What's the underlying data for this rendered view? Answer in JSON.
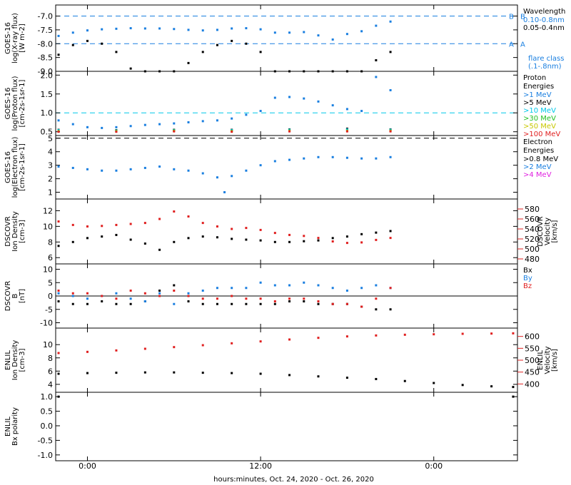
{
  "x_axis": {
    "label": "hours:minutes, Oct. 24, 2020 - Oct. 26, 2020",
    "ticks": [
      {
        "h": 0,
        "label": "0:00"
      },
      {
        "h": 12,
        "label": "12:00"
      },
      {
        "h": 24,
        "label": "0:00"
      }
    ]
  },
  "colors": {
    "black": "#000000",
    "blue": "#1a7fe0",
    "cyan": "#00c8e8",
    "green": "#22c022",
    "yellow": "#c8c800",
    "orange": "#f08020",
    "red": "#e02020",
    "magenta": "#e020e0"
  },
  "chart_data": [
    {
      "id": "xray",
      "type": "scatter",
      "hrange": [
        -2.2,
        29.8
      ],
      "ylim": [
        -9.0,
        -6.6
      ],
      "ylabel_lines": [
        "GOES-16",
        "log(X-ray flux)",
        "[W m-2]"
      ],
      "yticks": [
        -9.0,
        -8.5,
        -8.0,
        -7.5,
        -7.0
      ],
      "ytick_labels": [
        "-9.0",
        "-8.5",
        "-8.0",
        "-7.5",
        "-7.0"
      ],
      "hlines": [
        {
          "y": -7.0,
          "color": "#1a7fe0",
          "dash": true,
          "label": "B"
        },
        {
          "y": -8.0,
          "color": "#1a7fe0",
          "dash": true,
          "label": "A"
        }
      ],
      "legend_title": [
        "Wavelength"
      ],
      "legend": [
        {
          "name": "0.10-0.8nm",
          "color": "#1a7fe0"
        },
        {
          "name": "0.05-0.4nm",
          "color": "#000000"
        }
      ],
      "extra_label": [
        "flare class",
        "(.1-.8nm)"
      ],
      "series": [
        {
          "name": "0.10-0.8nm",
          "color": "#1a7fe0",
          "x": [
            -2,
            -1,
            0,
            1,
            2,
            3,
            4,
            5,
            6,
            7,
            8,
            9,
            10,
            11,
            12,
            13,
            14,
            15,
            16,
            17,
            18,
            19,
            20,
            21
          ],
          "y": [
            -7.72,
            -7.6,
            -7.52,
            -7.48,
            -7.46,
            -7.44,
            -7.45,
            -7.45,
            -7.47,
            -7.5,
            -7.52,
            -7.5,
            -7.45,
            -7.44,
            -7.48,
            -7.6,
            -7.6,
            -7.58,
            -7.7,
            -7.85,
            -7.65,
            -7.55,
            -7.35,
            -7.2
          ]
        },
        {
          "name": "0.05-0.4nm",
          "color": "#000000",
          "x": [
            -2,
            -1,
            0,
            1,
            2,
            3,
            4,
            5,
            6,
            7,
            8,
            9,
            10,
            11,
            12,
            13,
            14,
            15,
            16,
            17,
            18,
            19,
            20,
            21
          ],
          "y": [
            -8.4,
            -8.05,
            -7.9,
            -8.0,
            -8.3,
            -8.9,
            -9.0,
            -9.0,
            -9.0,
            -8.7,
            -8.3,
            -8.05,
            -7.9,
            -8.0,
            -8.3,
            -9.0,
            -9.0,
            -9.0,
            -9.0,
            -9.0,
            -9.0,
            -9.0,
            -8.6,
            -8.3
          ]
        }
      ]
    },
    {
      "id": "proton",
      "type": "scatter",
      "hrange": [
        -2.2,
        29.8
      ],
      "ylim": [
        0.4,
        2.1
      ],
      "ylabel_lines": [
        "GOES-16",
        "log(Proton flux)",
        "[cm-2s-1sr-1]"
      ],
      "yticks": [
        0.5,
        1.0,
        1.5,
        2.0
      ],
      "ytick_labels": [
        "0.5",
        "1.0",
        "1.5",
        "2.0"
      ],
      "hlines": [
        {
          "y": 1.0,
          "color": "#00c8e8",
          "dash": true,
          "label": ""
        }
      ],
      "legend_title": [
        "Proton",
        "Energies"
      ],
      "legend": [
        {
          "name": ">1 MeV",
          "color": "#1a7fe0"
        },
        {
          "name": ">5 MeV",
          "color": "#000000"
        },
        {
          "name": ">10 MeV",
          "color": "#00c8e8"
        },
        {
          "name": ">30 MeV",
          "color": "#22c022"
        },
        {
          "name": ">50 MeV",
          "color": "#c8c800"
        },
        {
          "name": ">100 MeV",
          "color": "#e02020"
        }
      ],
      "series": [
        {
          "name": ">1 MeV",
          "color": "#1a7fe0",
          "x": [
            -2,
            -1,
            0,
            1,
            2,
            3,
            4,
            5,
            6,
            7,
            8,
            9,
            10,
            11,
            12,
            13,
            14,
            15,
            16,
            17,
            18,
            19,
            20,
            21
          ],
          "y": [
            0.8,
            0.7,
            0.62,
            0.6,
            0.62,
            0.65,
            0.68,
            0.7,
            0.72,
            0.75,
            0.78,
            0.8,
            0.85,
            0.95,
            1.05,
            1.4,
            1.42,
            1.38,
            1.3,
            1.2,
            1.1,
            1.05,
            1.95,
            1.6
          ]
        },
        {
          "name": ">5 MeV",
          "color": "#000000",
          "x": [
            -2,
            2,
            6,
            10,
            14,
            18,
            21
          ],
          "y": [
            0.55,
            0.54,
            0.55,
            0.55,
            0.56,
            0.58,
            0.56
          ]
        },
        {
          "name": ">10 MeV",
          "color": "#00c8e8",
          "x": [
            -2,
            2,
            6,
            10,
            14,
            18,
            21
          ],
          "y": [
            0.54,
            0.53,
            0.54,
            0.54,
            0.55,
            0.56,
            0.55
          ]
        },
        {
          "name": ">30 MeV",
          "color": "#22c022",
          "x": [
            -2,
            2,
            6,
            10,
            14,
            18,
            21
          ],
          "y": [
            0.52,
            0.52,
            0.53,
            0.52,
            0.53,
            0.53,
            0.53
          ]
        },
        {
          "name": ">50 MeV",
          "color": "#c8c800",
          "x": [
            -2,
            2,
            6,
            10,
            14,
            18,
            21
          ],
          "y": [
            0.51,
            0.51,
            0.52,
            0.51,
            0.52,
            0.52,
            0.52
          ]
        },
        {
          "name": ">100 MeV",
          "color": "#e02020",
          "x": [
            -2,
            2,
            6,
            10,
            14,
            18,
            21
          ],
          "y": [
            0.5,
            0.5,
            0.51,
            0.5,
            0.51,
            0.51,
            0.51
          ]
        }
      ]
    },
    {
      "id": "electron",
      "type": "scatter",
      "hrange": [
        -2.2,
        29.8
      ],
      "ylim": [
        0.5,
        5.2
      ],
      "ylabel_lines": [
        "GOES-16",
        "log(Electron flux)",
        "[cm-2s-1sr-1]"
      ],
      "yticks": [
        1,
        2,
        3,
        4,
        5
      ],
      "ytick_labels": [
        "1",
        "2",
        "3",
        "4",
        "5"
      ],
      "hlines": [
        {
          "y": 5.0,
          "color": "#000000",
          "dash": true,
          "label": ""
        }
      ],
      "legend_title": [
        "Electron",
        "Energies"
      ],
      "legend": [
        {
          "name": ">0.8 MeV",
          "color": "#000000"
        },
        {
          "name": ">2 MeV",
          "color": "#1a7fe0"
        },
        {
          "name": ">4 MeV",
          "color": "#e020e0"
        }
      ],
      "series": [
        {
          "name": ">2 MeV",
          "color": "#1a7fe0",
          "x": [
            -2,
            -1,
            0,
            1,
            2,
            3,
            4,
            5,
            6,
            7,
            8,
            9,
            9.5,
            10,
            11,
            12,
            13,
            14,
            15,
            16,
            17,
            18,
            19,
            20,
            21
          ],
          "y": [
            2.9,
            2.8,
            2.7,
            2.6,
            2.6,
            2.7,
            2.8,
            2.9,
            2.7,
            2.6,
            2.4,
            2.1,
            1.0,
            2.2,
            2.6,
            3.0,
            3.3,
            3.4,
            3.5,
            3.6,
            3.6,
            3.55,
            3.5,
            3.5,
            3.6
          ]
        }
      ]
    },
    {
      "id": "dscovr_plasma",
      "type": "scatter",
      "hrange": [
        -2.2,
        29.8
      ],
      "ylim": [
        5.2,
        13.5
      ],
      "ylabel_lines": [
        "DSCOVR",
        "Ion Density",
        "[cm-3]"
      ],
      "yticks": [
        6,
        8,
        10,
        12
      ],
      "ytick_labels": [
        "6",
        "8",
        "10",
        "12"
      ],
      "right_axis": {
        "ylim": [
          470,
          600
        ],
        "ticks": [
          480,
          500,
          520,
          540,
          560,
          580
        ],
        "labels": [
          "480",
          "500",
          "520",
          "540",
          "560",
          "580"
        ],
        "color": "#e02020",
        "ylabel_lines": [
          "DSCOVR",
          "Velocity",
          "[km/s]"
        ]
      },
      "series": [
        {
          "name": "density",
          "color": "#000000",
          "axis": "left",
          "x": [
            -2,
            -1,
            0,
            1,
            2,
            3,
            4,
            5,
            6,
            7,
            8,
            9,
            10,
            11,
            12,
            13,
            14,
            15,
            16,
            17,
            18,
            19,
            20,
            21
          ],
          "y": [
            7.5,
            8.0,
            8.5,
            8.7,
            8.9,
            8.3,
            7.8,
            7.0,
            8.0,
            8.5,
            8.7,
            8.6,
            8.4,
            8.3,
            8.2,
            8.0,
            8.0,
            8.1,
            8.2,
            8.5,
            8.7,
            9.0,
            9.2,
            9.4
          ]
        },
        {
          "name": "velocity",
          "color": "#e02020",
          "axis": "right",
          "x": [
            -2,
            -1,
            0,
            1,
            2,
            3,
            4,
            5,
            6,
            7,
            8,
            9,
            10,
            11,
            12,
            13,
            14,
            15,
            16,
            17,
            18,
            19,
            20,
            21
          ],
          "y": [
            555,
            548,
            545,
            546,
            548,
            550,
            552,
            560,
            575,
            565,
            552,
            545,
            540,
            542,
            538,
            532,
            528,
            526,
            522,
            515,
            512,
            513,
            518,
            522
          ]
        }
      ]
    },
    {
      "id": "dscovr_mag",
      "type": "scatter",
      "hrange": [
        -2.2,
        29.8
      ],
      "ylim": [
        -12,
        12
      ],
      "ylabel_lines": [
        "DSCOVR",
        "B",
        "[nT]"
      ],
      "yticks": [
        -10,
        -5,
        0,
        5,
        10
      ],
      "ytick_labels": [
        "-10",
        "-5",
        "0",
        "5",
        "10"
      ],
      "hlines": [
        {
          "y": 0,
          "color": "#000000",
          "dash": false,
          "label": ""
        }
      ],
      "legend": [
        {
          "name": "Bx",
          "color": "#000000"
        },
        {
          "name": "By",
          "color": "#1a7fe0"
        },
        {
          "name": "Bz",
          "color": "#e02020"
        }
      ],
      "series": [
        {
          "name": "Bx",
          "color": "#000000",
          "x": [
            -2,
            -1,
            0,
            1,
            2,
            3,
            4,
            5,
            6,
            7,
            8,
            9,
            10,
            11,
            12,
            13,
            14,
            15,
            16,
            17,
            18,
            19,
            20,
            21
          ],
          "y": [
            -2,
            -3,
            -3,
            -2,
            -3,
            -3,
            -2,
            2,
            4,
            -2,
            -3,
            -3,
            -3,
            -3,
            -3,
            -3,
            -2,
            -2,
            -3,
            -3,
            -3,
            -4,
            -5,
            -5
          ]
        },
        {
          "name": "By",
          "color": "#1a7fe0",
          "x": [
            -2,
            -1,
            0,
            1,
            2,
            3,
            4,
            5,
            6,
            7,
            8,
            9,
            10,
            11,
            12,
            13,
            14,
            15,
            16,
            17,
            18,
            19,
            20,
            21
          ],
          "y": [
            1,
            0,
            -1,
            0,
            1,
            -1,
            -2,
            1,
            -3,
            1,
            2,
            3,
            3,
            3,
            5,
            4,
            4,
            5,
            4,
            3,
            2,
            3,
            4,
            3
          ]
        },
        {
          "name": "Bz",
          "color": "#e02020",
          "x": [
            -2,
            -1,
            0,
            1,
            2,
            3,
            4,
            5,
            6,
            7,
            8,
            9,
            10,
            11,
            12,
            13,
            14,
            15,
            16,
            17,
            18,
            19,
            20,
            21
          ],
          "y": [
            2,
            1,
            1,
            0,
            -1,
            2,
            1,
            0,
            2,
            0,
            -1,
            -1,
            0,
            -1,
            -1,
            -2,
            -1,
            -1,
            -2,
            -3,
            -3,
            -4,
            -1,
            3
          ]
        }
      ]
    },
    {
      "id": "enlil_plasma",
      "type": "scatter",
      "hrange": [
        -2.2,
        29.8
      ],
      "ylim": [
        2.8,
        12.5
      ],
      "ylabel_lines": [
        "ENLIL",
        "Ion Density",
        "[cm-3]"
      ],
      "yticks": [
        4,
        6,
        8,
        10
      ],
      "ytick_labels": [
        "4",
        "6",
        "8",
        "10"
      ],
      "right_axis": {
        "ylim": [
          365,
          635
        ],
        "ticks": [
          400,
          450,
          500,
          550,
          600
        ],
        "labels": [
          "400",
          "450",
          "500",
          "550",
          "600"
        ],
        "color": "#e02020",
        "ylabel_lines": [
          "ENLIL",
          "Velocity",
          "[km/s]"
        ]
      },
      "series": [
        {
          "name": "density",
          "color": "#000000",
          "axis": "left",
          "x": [
            -2,
            0,
            2,
            4,
            6,
            8,
            10,
            12,
            14,
            16,
            18,
            20,
            22,
            24,
            26,
            28,
            29.5
          ],
          "y": [
            5.6,
            5.7,
            5.75,
            5.8,
            5.8,
            5.75,
            5.7,
            5.6,
            5.4,
            5.2,
            5.0,
            4.8,
            4.5,
            4.2,
            3.9,
            3.7,
            3.6
          ]
        },
        {
          "name": "velocity",
          "color": "#e02020",
          "axis": "right",
          "x": [
            -2,
            0,
            2,
            4,
            6,
            8,
            10,
            12,
            14,
            16,
            18,
            20,
            22,
            24,
            26,
            28,
            29.5
          ],
          "y": [
            530,
            535,
            541,
            548,
            555,
            563,
            571,
            579,
            587,
            594,
            600,
            604,
            607,
            609,
            611,
            612,
            613
          ]
        }
      ]
    },
    {
      "id": "enlil_polarity",
      "type": "scatter",
      "hrange": [
        -2.2,
        29.8
      ],
      "ylim": [
        -1.2,
        1.15
      ],
      "ylabel_lines": [
        "ENLIL",
        "Bx polarity"
      ],
      "yticks": [
        -1.0,
        -0.5,
        0.0,
        0.5,
        1.0
      ],
      "ytick_labels": [
        "-1.0",
        "-0.5",
        "0.0",
        "0.5",
        "1.0"
      ],
      "series": [
        {
          "name": "polarity",
          "color": "#000000",
          "x": [
            -2,
            29.5
          ],
          "y": [
            1.0,
            1.0
          ]
        }
      ]
    }
  ]
}
